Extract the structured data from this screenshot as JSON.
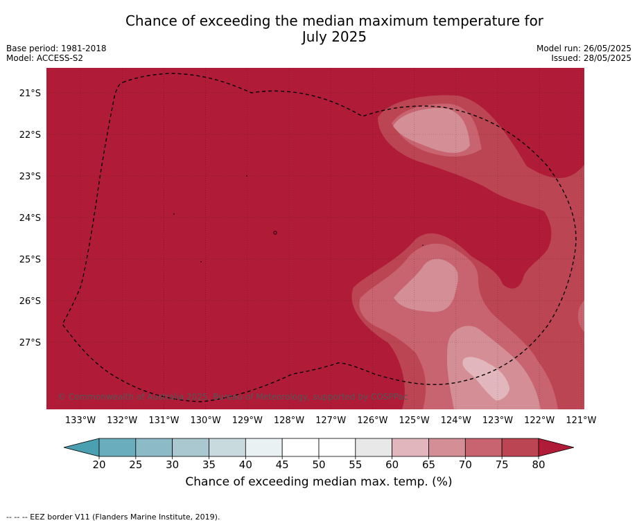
{
  "title_line1": "Chance of exceeding the median maximum temperature for",
  "title_line2": "July 2025",
  "meta_left": {
    "base_period": "Base period: 1981-2018",
    "model": "Model: ACCESS-S2"
  },
  "meta_right": {
    "model_run": "Model run: 26/05/2025",
    "issued": "Issued: 28/05/2025"
  },
  "copyright": "© Commonwealth of Australia 2025, Bureau of Meteorology, supported by COSPPac",
  "lat_labels": [
    "21°S",
    "22°S",
    "23°S",
    "24°S",
    "25°S",
    "26°S",
    "27°S"
  ],
  "lon_labels": [
    "133°W",
    "132°W",
    "131°W",
    "130°W",
    "129°W",
    "128°W",
    "127°W",
    "126°W",
    "125°W",
    "124°W",
    "123°W",
    "122°W",
    "121°W"
  ],
  "colorbar": {
    "ticks": [
      "20",
      "25",
      "30",
      "35",
      "40",
      "45",
      "50",
      "55",
      "60",
      "65",
      "70",
      "75",
      "80"
    ],
    "label": "Chance of exceeding median max. temp. (%)",
    "colors": [
      "#6aadbd",
      "#8dbac7",
      "#a9c8cf",
      "#c9dade",
      "#eaf1f3",
      "#ffffff",
      "#ffffff",
      "#e8e8e8",
      "#e1b7bd",
      "#d48e96",
      "#c8646f",
      "#bc4553"
    ],
    "under_color": "#4a9fb0",
    "over_color": "#b01c38"
  },
  "footnote": "--  --  -- EEZ border V11 (Flanders Marine Institute, 2019).",
  "colors": {
    "high": "#b01c38",
    "band_75_80": "#bc4553",
    "band_70_75": "#c8646f",
    "band_65_70": "#d48e96",
    "band_60_65": "#e1b7bd"
  }
}
